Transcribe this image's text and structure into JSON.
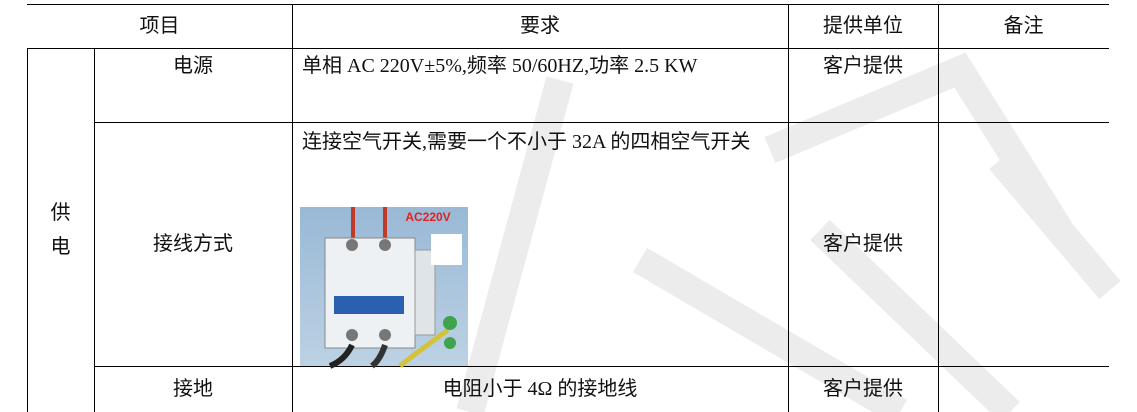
{
  "table": {
    "header": [
      "项目",
      "要求",
      "提供单位",
      "备注"
    ],
    "group": "供电",
    "rows": [
      {
        "item": "电源",
        "requirement": "单相 AC 220V±5%,频率 50/60HZ,功率 2.5 KW",
        "provider": "客户提供"
      },
      {
        "item": "接线方式",
        "requirement": "连接空气开关,需要一个不小于 32A 的四相空气开关",
        "image_label": "AC220V",
        "provider": "客户提供"
      },
      {
        "item": "接地",
        "requirement": "电阻小于 4Ω 的接地线",
        "provider": "客户提供"
      }
    ]
  }
}
